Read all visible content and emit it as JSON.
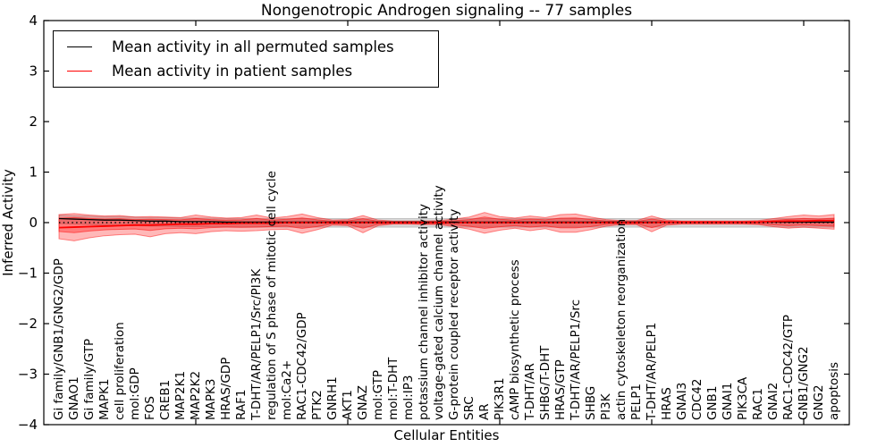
{
  "chart_data": {
    "type": "line",
    "title": "Nongenotropic Androgen signaling -- 77 samples",
    "xlabel": "Cellular Entities",
    "ylabel": "Inferred Activity",
    "ylim": [
      -4,
      4
    ],
    "yticks": [
      4,
      3,
      2,
      1,
      0,
      -1,
      -2,
      -3,
      -4
    ],
    "xlim": [
      0,
      53
    ],
    "xtick_positions": [
      10,
      20,
      30,
      40,
      50
    ],
    "grid": false,
    "legend_position": "upper left",
    "zero_line": {
      "value": 0,
      "style": "dotted",
      "color": "#000000"
    },
    "categories": [
      "Gi family/GNB1/GNG2/GDP",
      "GNAO1",
      "Gi family/GTP",
      "MAPK1",
      "cell proliferation",
      "mol:GDP",
      "FOS",
      "CREB1",
      "MAP2K1",
      "MAP2K2",
      "MAPK3",
      "HRAS/GDP",
      "RAF1",
      "T-DHT/AR/PELP1/Src/PI3K",
      "regulation of S phase of mitotic cell cycle",
      "mol:Ca2+",
      "RAC1-CDC42/GDP",
      "PTK2",
      "GNRH1",
      "AKT1",
      "GNAZ",
      "mol:GTP",
      "mol:T-DHT",
      "mol:IP3",
      "potassium channel inhibitor activity",
      "voltage-gated calcium channel activity",
      "G-protein coupled receptor activity",
      "SRC",
      "AR",
      "PIK3R1",
      "cAMP biosynthetic process",
      "T-DHT/AR",
      "SHBG/T-DHT",
      "HRAS/GTP",
      "T-DHT/AR/PELP1/Src",
      "SHBG",
      "PI3K",
      "actin cytoskeleton reorganization",
      "PELP1",
      "T-DHT/AR/PELP1",
      "HRAS",
      "GNAI3",
      "CDC42",
      "GNB1",
      "GNAI1",
      "PIK3CA",
      "RAC1",
      "GNAI2",
      "RAC1-CDC42/GTP",
      "GNB1/GNG2",
      "GNG2",
      "apoptosis"
    ],
    "series": [
      {
        "name": "Mean activity in all permuted samples",
        "color": "#000000",
        "values": [
          0.08,
          0.07,
          0.06,
          0.05,
          0.05,
          0.04,
          0.03,
          0.03,
          0.02,
          0.02,
          0.02,
          0.01,
          0.01,
          0.01,
          0.01,
          0.01,
          0.01,
          0.01,
          0.01,
          0.01,
          0.01,
          0.01,
          0.01,
          0.01,
          0.01,
          0.01,
          0.01,
          0.01,
          0.01,
          0.01,
          0.01,
          0.01,
          0.01,
          0.01,
          0.01,
          0.01,
          0.01,
          0.01,
          0.01,
          0.01,
          0.01,
          0.01,
          0.01,
          0.01,
          0.01,
          0.01,
          0.01,
          0.01,
          0.01,
          0.01,
          0.01,
          0.01
        ]
      },
      {
        "name": "Mean activity in patient samples",
        "color": "#ff0000",
        "values": [
          -0.1,
          -0.09,
          -0.08,
          -0.07,
          -0.06,
          -0.05,
          -0.05,
          -0.04,
          -0.03,
          -0.03,
          -0.02,
          -0.02,
          -0.01,
          -0.01,
          -0.01,
          0.0,
          0.0,
          0.0,
          0.0,
          0.0,
          0.0,
          0.0,
          0.0,
          0.0,
          0.0,
          0.0,
          0.0,
          0.0,
          0.0,
          0.0,
          0.0,
          0.0,
          0.0,
          0.0,
          0.0,
          0.0,
          0.0,
          0.0,
          0.0,
          0.0,
          0.01,
          0.01,
          0.01,
          0.01,
          0.01,
          0.01,
          0.01,
          0.02,
          0.03,
          0.03,
          0.04,
          0.04
        ]
      }
    ],
    "bands": [
      {
        "name": "permuted-samples-spread",
        "color": "rgba(0,0,0,0.15)",
        "edge": "rgba(0,0,0,0.18)",
        "upper": [
          0.15,
          0.14,
          0.13,
          0.12,
          0.12,
          0.11,
          0.1,
          0.1,
          0.09,
          0.09,
          0.09,
          0.08,
          0.08,
          0.08,
          0.08,
          0.08,
          0.08,
          0.08,
          0.08,
          0.08,
          0.08,
          0.08,
          0.08,
          0.08,
          0.08,
          0.08,
          0.08,
          0.08,
          0.08,
          0.08,
          0.08,
          0.08,
          0.08,
          0.08,
          0.08,
          0.08,
          0.08,
          0.08,
          0.08,
          0.08,
          0.08,
          0.08,
          0.08,
          0.08,
          0.08,
          0.08,
          0.08,
          0.08,
          0.08,
          0.08,
          0.08,
          0.08
        ],
        "lower": [
          -0.02,
          -0.03,
          -0.04,
          -0.05,
          -0.05,
          -0.06,
          -0.07,
          -0.07,
          -0.08,
          -0.08,
          -0.08,
          -0.09,
          -0.09,
          -0.09,
          -0.09,
          -0.09,
          -0.09,
          -0.09,
          -0.09,
          -0.09,
          -0.09,
          -0.09,
          -0.09,
          -0.09,
          -0.09,
          -0.09,
          -0.09,
          -0.09,
          -0.09,
          -0.09,
          -0.09,
          -0.09,
          -0.09,
          -0.09,
          -0.09,
          -0.09,
          -0.09,
          -0.09,
          -0.09,
          -0.09,
          -0.09,
          -0.09,
          -0.09,
          -0.09,
          -0.09,
          -0.09,
          -0.09,
          -0.09,
          -0.09,
          -0.09,
          -0.09,
          -0.09
        ]
      },
      {
        "name": "patient-samples-spread-outer",
        "color": "rgba(255,0,0,0.28)",
        "edge": "rgba(255,0,0,0.45)",
        "upper": [
          0.16,
          0.18,
          0.15,
          0.13,
          0.14,
          0.11,
          0.12,
          0.11,
          0.1,
          0.15,
          0.11,
          0.09,
          0.1,
          0.15,
          0.09,
          0.12,
          0.17,
          0.1,
          0.05,
          0.06,
          0.14,
          0.05,
          0.03,
          0.03,
          0.03,
          0.04,
          0.07,
          0.11,
          0.2,
          0.12,
          0.09,
          0.13,
          0.1,
          0.16,
          0.17,
          0.11,
          0.06,
          0.04,
          0.04,
          0.13,
          0.05,
          0.03,
          0.03,
          0.03,
          0.03,
          0.03,
          0.04,
          0.08,
          0.12,
          0.15,
          0.13,
          0.16
        ],
        "lower": [
          -0.32,
          -0.36,
          -0.3,
          -0.26,
          -0.24,
          -0.23,
          -0.28,
          -0.22,
          -0.2,
          -0.22,
          -0.18,
          -0.16,
          -0.17,
          -0.16,
          -0.14,
          -0.13,
          -0.21,
          -0.14,
          -0.05,
          -0.06,
          -0.2,
          -0.06,
          -0.03,
          -0.03,
          -0.04,
          -0.04,
          -0.08,
          -0.13,
          -0.21,
          -0.15,
          -0.11,
          -0.16,
          -0.12,
          -0.19,
          -0.19,
          -0.14,
          -0.07,
          -0.04,
          -0.04,
          -0.18,
          -0.05,
          -0.03,
          -0.03,
          -0.03,
          -0.03,
          -0.03,
          -0.04,
          -0.08,
          -0.11,
          -0.09,
          -0.11,
          -0.13
        ]
      },
      {
        "name": "patient-samples-spread-inner",
        "color": "rgba(255,0,0,0.32)",
        "edge": "rgba(255,0,0,0.5)",
        "scale_of": 1,
        "scale": 0.55
      }
    ]
  }
}
